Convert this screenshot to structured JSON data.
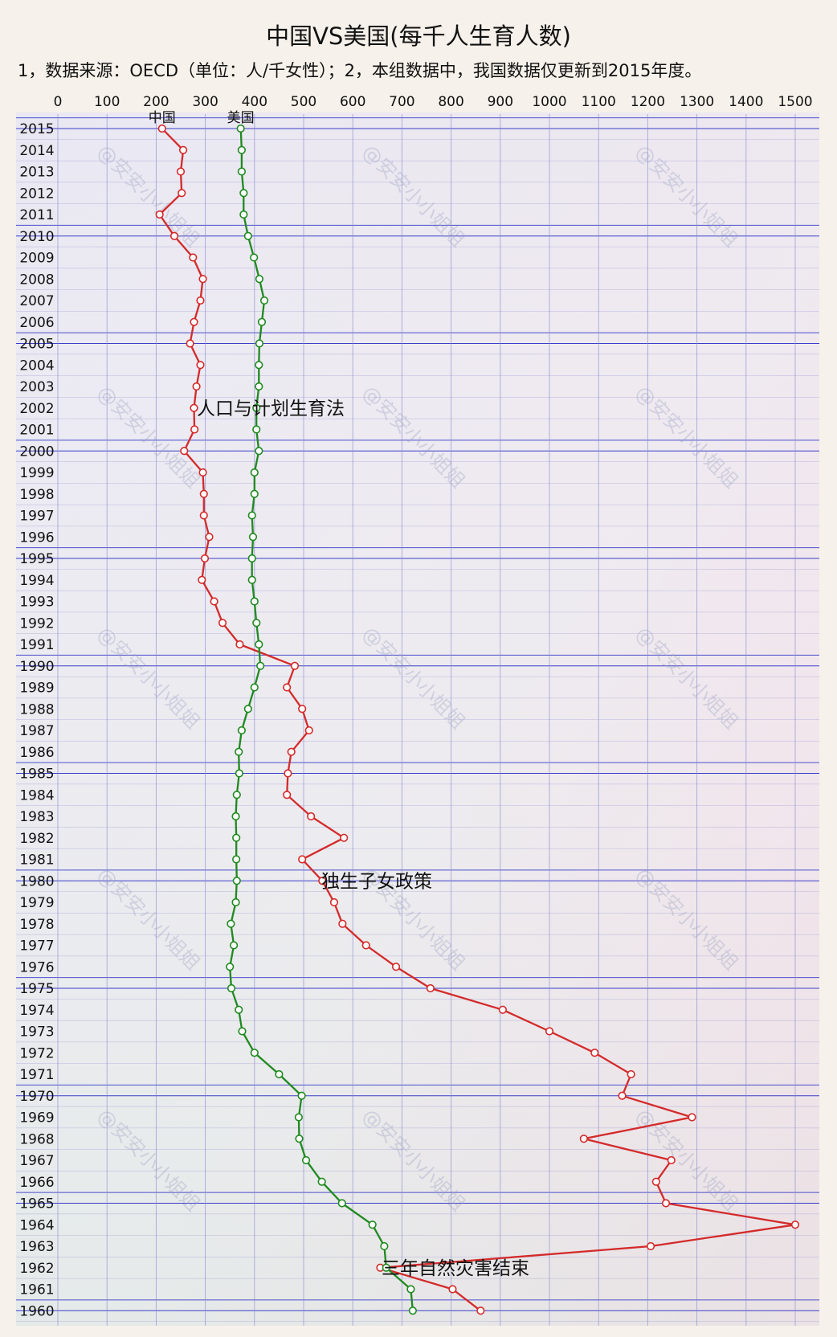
{
  "title": "中国VS美国(每千人生育人数)",
  "subtitle": "1，数据来源：OECD（单位：人/千女性）；2，本组数据中，我国数据仅更新到2015年度。",
  "watermark": "@安安小小姐姐",
  "colors": {
    "china": "#d42a2a",
    "usa": "#1f8a1f",
    "grid_major": "#3b3ec9",
    "grid_minor": "#8a8ad0"
  },
  "chart_data": {
    "type": "line",
    "orientation": "horizontal",
    "xlim": [
      0,
      1500
    ],
    "x_ticks": [
      0,
      100,
      200,
      300,
      400,
      500,
      600,
      700,
      800,
      900,
      1000,
      1100,
      1200,
      1300,
      1400,
      1500
    ],
    "x_tick_labels": [
      "0",
      "100",
      "200",
      "300",
      "400",
      "500",
      "600",
      "700",
      "800",
      "900",
      "1000",
      "1100",
      "1200",
      "1300",
      "1400",
      "1500"
    ],
    "years": [
      2015,
      2014,
      2013,
      2012,
      2011,
      2010,
      2009,
      2008,
      2007,
      2006,
      2005,
      2004,
      2003,
      2002,
      2001,
      2000,
      1999,
      1998,
      1997,
      1996,
      1995,
      1994,
      1993,
      1992,
      1991,
      1990,
      1989,
      1988,
      1987,
      1986,
      1985,
      1984,
      1983,
      1982,
      1981,
      1980,
      1979,
      1978,
      1977,
      1976,
      1975,
      1974,
      1973,
      1972,
      1971,
      1970,
      1969,
      1968,
      1967,
      1966,
      1965,
      1964,
      1963,
      1962,
      1961,
      1960
    ],
    "year_labels": [
      "2015",
      "2014",
      "2013",
      "2012",
      "2011",
      "2010",
      "2009",
      "2008",
      "2007",
      "2006",
      "2005",
      "2004",
      "2003",
      "2002",
      "2001",
      "2000",
      "1999",
      "1998",
      "1997",
      "1996",
      "1995",
      "1994",
      "1993",
      "1992",
      "1991",
      "1990",
      "1989",
      "1988",
      "1987",
      "1986",
      "1985",
      "1984",
      "1983",
      "1982",
      "1981",
      "1980",
      "1979",
      "1978",
      "1977",
      "1976",
      "1975",
      "1974",
      "1973",
      "1972",
      "1971",
      "1970",
      "1969",
      "1968",
      "1967",
      "1966",
      "1965",
      "1964",
      "1963",
      "1962",
      "1961",
      "1960"
    ],
    "grid": true,
    "series": [
      {
        "name": "中国",
        "color": "#d42a2a",
        "values": [
          212,
          255,
          250,
          252,
          207,
          237,
          275,
          295,
          290,
          277,
          269,
          290,
          282,
          277,
          278,
          257,
          295,
          297,
          297,
          308,
          299,
          293,
          318,
          335,
          370,
          482,
          466,
          497,
          511,
          475,
          468,
          466,
          515,
          582,
          497,
          538,
          562,
          579,
          627,
          688,
          758,
          905,
          1000,
          1092,
          1166,
          1148,
          1290,
          1070,
          1248,
          1217,
          1237,
          1500,
          1206,
          656,
          803,
          860
        ]
      },
      {
        "name": "美国",
        "color": "#1f8a1f",
        "values": [
          372,
          374,
          374,
          378,
          378,
          387,
          399,
          410,
          420,
          415,
          410,
          409,
          409,
          404,
          404,
          409,
          400,
          400,
          395,
          397,
          395,
          395,
          400,
          404,
          409,
          412,
          400,
          387,
          374,
          368,
          369,
          364,
          362,
          363,
          363,
          364,
          362,
          352,
          358,
          350,
          353,
          368,
          375,
          400,
          450,
          496,
          490,
          491,
          505,
          537,
          578,
          640,
          664,
          668,
          718,
          722
        ]
      }
    ],
    "annotations": [
      "人口与计划生育法",
      "独生子女政策",
      "三年自然灾害结束"
    ]
  }
}
